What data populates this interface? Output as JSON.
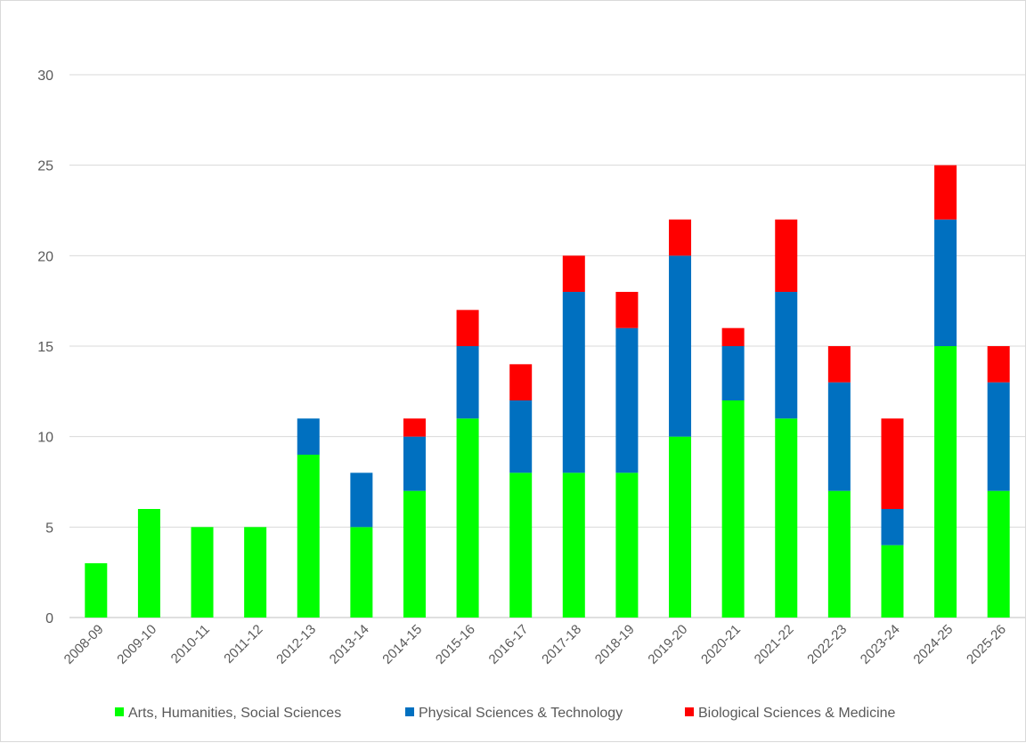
{
  "chart_data": {
    "type": "bar",
    "stacked": true,
    "title": "",
    "xlabel": "",
    "ylabel": "",
    "ylim": [
      0,
      30
    ],
    "yticks": [
      0,
      5,
      10,
      15,
      20,
      25,
      30
    ],
    "grid": true,
    "legend_position": "bottom",
    "categories": [
      "2008-09",
      "2009-10",
      "2010-11",
      "2011-12",
      "2012-13",
      "2013-14",
      "2014-15",
      "2015-16",
      "2016-17",
      "2017-18",
      "2018-19",
      "2019-20",
      "2020-21",
      "2021-22",
      "2022-23",
      "2023-24",
      "2024-25",
      "2025-26"
    ],
    "series": [
      {
        "name": "Arts, Humanities, Social Sciences",
        "color": "#00ff00",
        "values": [
          3,
          6,
          5,
          5,
          9,
          5,
          7,
          11,
          8,
          8,
          8,
          10,
          12,
          11,
          7,
          4,
          15,
          7
        ]
      },
      {
        "name": "Physical Sciences & Technology",
        "color": "#0070c0",
        "values": [
          0,
          0,
          0,
          0,
          2,
          3,
          3,
          4,
          4,
          10,
          8,
          10,
          3,
          7,
          6,
          2,
          7,
          6
        ]
      },
      {
        "name": "Biological Sciences & Medicine",
        "color": "#ff0000",
        "values": [
          0,
          0,
          0,
          0,
          0,
          0,
          1,
          2,
          2,
          2,
          2,
          2,
          1,
          4,
          2,
          5,
          3,
          2
        ]
      }
    ]
  }
}
